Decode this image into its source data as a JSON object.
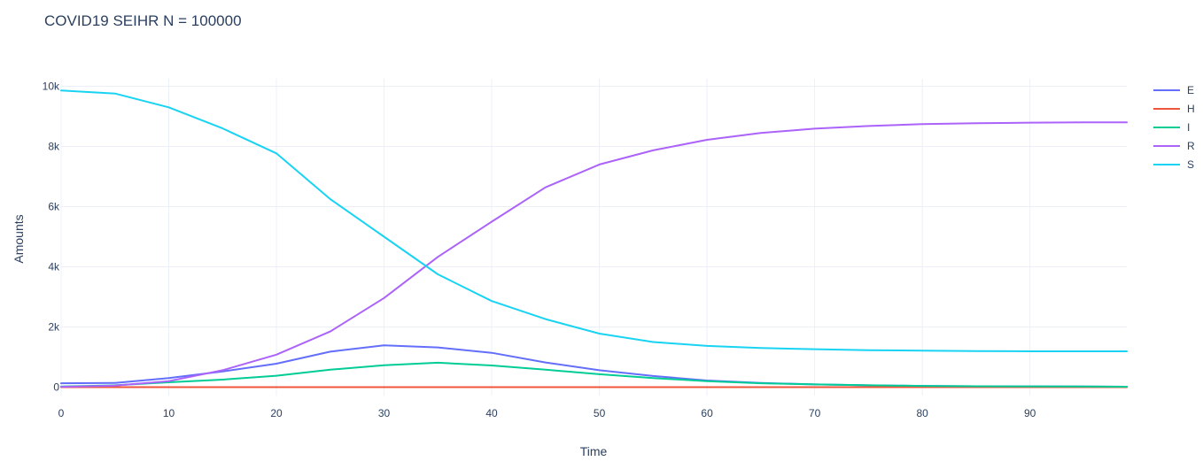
{
  "chart_data": {
    "type": "line",
    "title": "COVID19 SEIHR N = 100000",
    "xlabel": "Time",
    "ylabel": "Amounts",
    "xlim": [
      0,
      99
    ],
    "ylim": [
      -280,
      10250
    ],
    "x_ticks": [
      0,
      10,
      20,
      30,
      40,
      50,
      60,
      70,
      80,
      90
    ],
    "x_tick_labels": [
      "0",
      "10",
      "20",
      "30",
      "40",
      "50",
      "60",
      "70",
      "80",
      "90"
    ],
    "y_ticks": [
      0,
      2000,
      4000,
      6000,
      8000,
      10000
    ],
    "y_tick_labels": [
      "0",
      "2k",
      "4k",
      "6k",
      "8k",
      "10k"
    ],
    "grid": true,
    "legend_position": "top-right",
    "x": [
      0,
      5,
      10,
      15,
      20,
      25,
      30,
      35,
      40,
      45,
      50,
      55,
      60,
      65,
      70,
      75,
      80,
      85,
      90,
      95,
      99
    ],
    "series": [
      {
        "name": "E",
        "color": "#636efa",
        "values": [
          130,
          140,
          300,
          520,
          780,
          1180,
          1390,
          1320,
          1140,
          820,
          560,
          370,
          220,
          140,
          90,
          60,
          40,
          30,
          25,
          20,
          15
        ]
      },
      {
        "name": "H",
        "color": "#ef553b",
        "values": [
          0,
          0,
          0,
          0,
          0,
          0,
          0,
          0,
          0,
          0,
          0,
          0,
          0,
          0,
          0,
          0,
          0,
          0,
          0,
          0,
          0
        ]
      },
      {
        "name": "I",
        "color": "#00cc96",
        "values": [
          20,
          60,
          160,
          250,
          380,
          580,
          730,
          810,
          720,
          580,
          430,
          300,
          200,
          130,
          90,
          60,
          40,
          30,
          25,
          20,
          15
        ]
      },
      {
        "name": "R",
        "color": "#ab63fa",
        "values": [
          10,
          50,
          200,
          560,
          1080,
          1850,
          2960,
          4330,
          5500,
          6640,
          7400,
          7870,
          8220,
          8450,
          8590,
          8680,
          8740,
          8770,
          8790,
          8800,
          8800
        ]
      },
      {
        "name": "S",
        "color": "#19d3f3",
        "values": [
          9860,
          9760,
          9300,
          8600,
          7770,
          6250,
          5000,
          3750,
          2860,
          2260,
          1780,
          1500,
          1370,
          1300,
          1260,
          1230,
          1210,
          1200,
          1190,
          1190,
          1190
        ]
      }
    ]
  }
}
